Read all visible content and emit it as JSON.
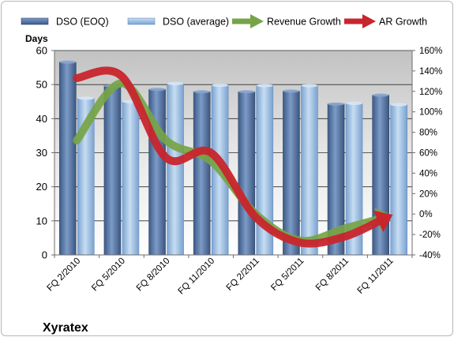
{
  "chart_data": {
    "type": "bar",
    "company": "Xyratex",
    "y_left_label": "Days",
    "categories": [
      "FQ 2/2010",
      "FQ 5/2010",
      "FQ 8/2010",
      "FQ 11/2010",
      "FQ 2/2011",
      "FQ 5/2011",
      "FQ 8/2011",
      "FQ 11/2011"
    ],
    "series": [
      {
        "name": "DSO (EOQ)",
        "kind": "bar",
        "axis": "left",
        "color": "#4f6d9b",
        "values": [
          56.6,
          49.6,
          48.6,
          47.9,
          47.9,
          48.1,
          44.3,
          46.9
        ]
      },
      {
        "name": "DSO (average)",
        "kind": "bar",
        "axis": "left",
        "color": "#9dbde0",
        "values": [
          46.0,
          45.0,
          50.3,
          49.8,
          49.7,
          49.7,
          44.5,
          44.1
        ]
      },
      {
        "name": "Revenue Growth",
        "kind": "line",
        "axis": "right",
        "color": "#76a447",
        "values": [
          72,
          128,
          72,
          52,
          0,
          -26,
          -14,
          -2
        ]
      },
      {
        "name": "AR Growth",
        "kind": "line",
        "axis": "right",
        "color": "#c8252c",
        "values": [
          133,
          135,
          55,
          60,
          -3,
          -28,
          -22,
          -2
        ]
      }
    ],
    "y_left": {
      "min": 0,
      "max": 60,
      "step": 10,
      "ticks": [
        "0",
        "10",
        "20",
        "30",
        "40",
        "50",
        "60"
      ]
    },
    "y_right": {
      "min": -40,
      "max": 160,
      "step": 20,
      "ticks": [
        "-40%",
        "-20%",
        "0%",
        "20%",
        "40%",
        "60%",
        "80%",
        "100%",
        "120%",
        "140%",
        "160%"
      ]
    },
    "grid": true,
    "legend_position": "top",
    "plot_background": "gradient-gray"
  }
}
